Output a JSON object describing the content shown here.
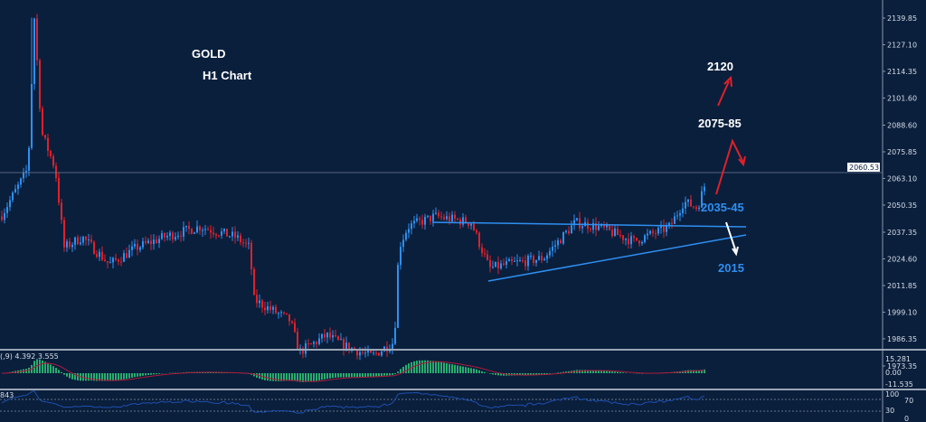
{
  "chart_data": {
    "type": "candlestick",
    "title": "GOLD",
    "subtitle": "H1 Chart",
    "ylim": [
      1973.35,
      2139.85
    ],
    "y_ticks": [
      "2139.85",
      "2127.10",
      "2114.35",
      "2101.60",
      "2088.60",
      "2075.85",
      "2063.10",
      "2050.35",
      "2037.35",
      "2024.60",
      "2011.85",
      "1999.10",
      "1986.35",
      "1973.35"
    ],
    "current_price": "2060.53",
    "price_path": [
      [
        0,
        2045
      ],
      [
        20,
        2060
      ],
      [
        30,
        2068
      ],
      [
        37,
        2140
      ],
      [
        45,
        2085
      ],
      [
        60,
        2068
      ],
      [
        70,
        2030
      ],
      [
        90,
        2035
      ],
      [
        120,
        2022
      ],
      [
        150,
        2030
      ],
      [
        180,
        2035
      ],
      [
        220,
        2040
      ],
      [
        260,
        2035
      ],
      [
        275,
        2030
      ],
      [
        280,
        2005
      ],
      [
        300,
        2000
      ],
      [
        320,
        1995
      ],
      [
        330,
        1980
      ],
      [
        360,
        1988
      ],
      [
        380,
        1983
      ],
      [
        410,
        1978
      ],
      [
        435,
        1985
      ],
      [
        440,
        2030
      ],
      [
        450,
        2040
      ],
      [
        480,
        2045
      ],
      [
        520,
        2042
      ],
      [
        540,
        2020
      ],
      [
        560,
        2022
      ],
      [
        600,
        2025
      ],
      [
        635,
        2042
      ],
      [
        660,
        2040
      ],
      [
        700,
        2033
      ],
      [
        740,
        2040
      ],
      [
        755,
        2052
      ],
      [
        770,
        2049
      ],
      [
        780,
        2062
      ]
    ],
    "annotations": [
      {
        "text": "2120",
        "color": "#ffffff"
      },
      {
        "text": "2075-85",
        "color": "#ffffff"
      },
      {
        "text": "2035-45",
        "color": "#2f8ff0"
      },
      {
        "text": "2015",
        "color": "#2f8ff0"
      }
    ],
    "trendlines": [
      {
        "name": "resistance",
        "from": 2047,
        "to": 2045
      },
      {
        "name": "support",
        "from": 2016,
        "to": 2038
      }
    ],
    "colors": {
      "background": "#0a1f3c",
      "bull": "#2f8ff0",
      "bear": "#e0202a",
      "arrow_up": "#e0202a",
      "arrow_down": "#ffffff",
      "macd_hist": "#33d17a",
      "macd_signal": "#b01a3a",
      "rsi": "#1f4fb0"
    },
    "macd": {
      "label": "(,9) 4.392 3.555",
      "ticks": [
        "15.281",
        "0.00",
        "-11.535"
      ]
    },
    "rsi": {
      "label": "843",
      "ticks": [
        "100",
        "70",
        "30",
        "0"
      ]
    }
  }
}
